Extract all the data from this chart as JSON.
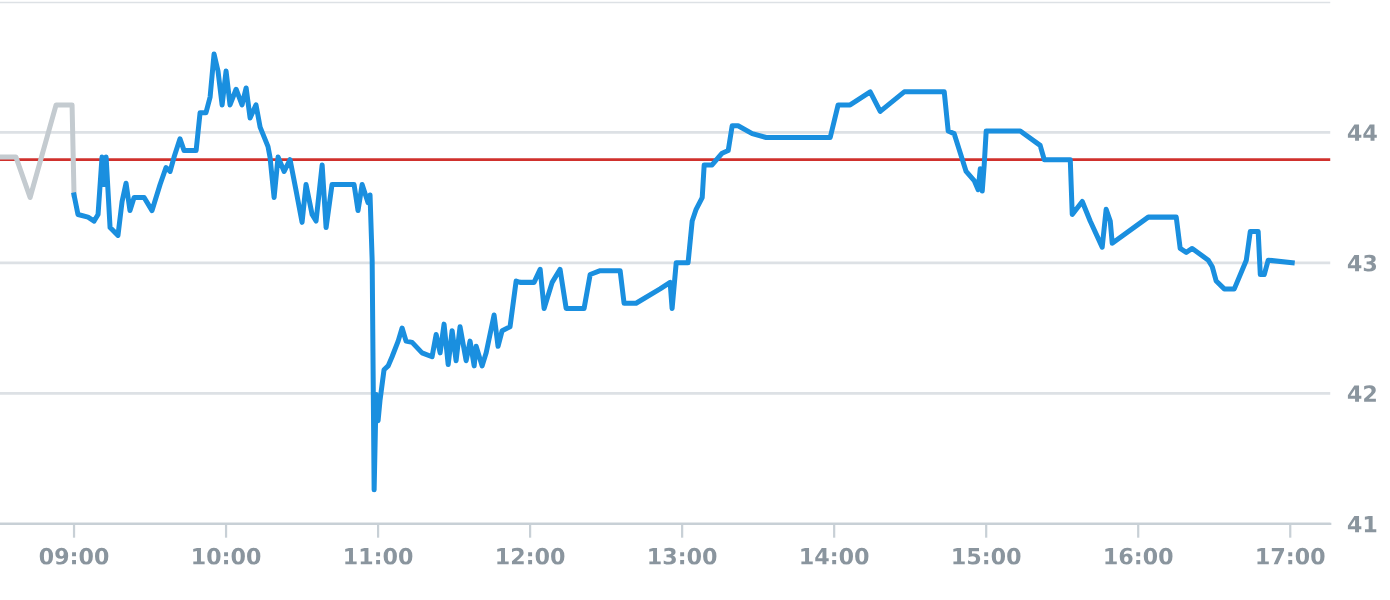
{
  "chart_data": {
    "type": "line",
    "xlim": [
      8.513,
      17.263
    ],
    "ylim": [
      41,
      45
    ],
    "xticks": [
      {
        "value": 9,
        "label": "09:00"
      },
      {
        "value": 10,
        "label": "10:00"
      },
      {
        "value": 11,
        "label": "11:00"
      },
      {
        "value": 12,
        "label": "12:00"
      },
      {
        "value": 13,
        "label": "13:00"
      },
      {
        "value": 14,
        "label": "14:00"
      },
      {
        "value": 15,
        "label": "15:00"
      },
      {
        "value": 16,
        "label": "16:00"
      },
      {
        "value": 17,
        "label": "17:00"
      }
    ],
    "yticks": [
      41,
      42,
      43,
      44,
      {
        "value": 45,
        "label": null
      }
    ],
    "grid": "y",
    "marker": "none",
    "line_style": "solid",
    "ref_lines": [
      {
        "axis": "y",
        "value": 43.79,
        "color": "#d0312d"
      }
    ],
    "series": [
      {
        "color": "#c4cbd0",
        "x": [
          8.513,
          8.618,
          8.711,
          8.882,
          8.987,
          9.0
        ],
        "values": [
          43.81,
          43.81,
          43.5,
          44.21,
          44.21,
          43.52
        ]
      },
      {
        "color": "#1a8fdf",
        "x": [
          9.0,
          9.026,
          9.092,
          9.132,
          9.158,
          9.184,
          9.197,
          9.211,
          9.237,
          9.289,
          9.316,
          9.342,
          9.368,
          9.395,
          9.461,
          9.513,
          9.566,
          9.605,
          9.632,
          9.658,
          9.697,
          9.724,
          9.803,
          9.829,
          9.868,
          9.895,
          9.921,
          9.947,
          9.974,
          10.0,
          10.026,
          10.066,
          10.105,
          10.132,
          10.158,
          10.197,
          10.224,
          10.276,
          10.289,
          10.316,
          10.342,
          10.382,
          10.421,
          10.461,
          10.5,
          10.526,
          10.566,
          10.592,
          10.632,
          10.658,
          10.697,
          10.842,
          10.868,
          10.895,
          10.934,
          10.947,
          10.961,
          10.974,
          10.987,
          11.0,
          11.013,
          11.039,
          11.066,
          11.092,
          11.132,
          11.158,
          11.184,
          11.224,
          11.289,
          11.355,
          11.382,
          11.408,
          11.434,
          11.461,
          11.487,
          11.513,
          11.539,
          11.579,
          11.605,
          11.632,
          11.645,
          11.684,
          11.711,
          11.763,
          11.789,
          11.816,
          11.868,
          11.908,
          11.934,
          12.026,
          12.066,
          12.092,
          12.145,
          12.197,
          12.237,
          12.355,
          12.395,
          12.461,
          12.592,
          12.618,
          12.697,
          12.855,
          12.921,
          12.934,
          12.961,
          13.039,
          13.066,
          13.092,
          13.132,
          13.145,
          13.197,
          13.263,
          13.303,
          13.329,
          13.368,
          13.461,
          13.553,
          13.974,
          14.026,
          14.105,
          14.237,
          14.303,
          14.461,
          14.724,
          14.75,
          14.789,
          14.868,
          14.921,
          14.947,
          14.961,
          14.974,
          14.987,
          15.0,
          15.224,
          15.355,
          15.382,
          15.553,
          15.566,
          15.632,
          15.684,
          15.763,
          15.789,
          15.816,
          15.829,
          16.066,
          16.25,
          16.276,
          16.316,
          16.355,
          16.461,
          16.487,
          16.513,
          16.566,
          16.632,
          16.711,
          16.737,
          16.789,
          16.803,
          16.829,
          16.855,
          17.013
        ],
        "values": [
          43.52,
          43.37,
          43.35,
          43.32,
          43.37,
          43.81,
          43.6,
          43.81,
          43.27,
          43.21,
          43.47,
          43.61,
          43.4,
          43.5,
          43.5,
          43.4,
          43.6,
          43.73,
          43.7,
          43.81,
          43.95,
          43.86,
          43.86,
          44.15,
          44.15,
          44.27,
          44.6,
          44.47,
          44.21,
          44.47,
          44.21,
          44.33,
          44.21,
          44.34,
          44.11,
          44.21,
          44.04,
          43.89,
          43.81,
          43.5,
          43.81,
          43.7,
          43.79,
          43.55,
          43.31,
          43.6,
          43.37,
          43.32,
          43.75,
          43.27,
          43.6,
          43.6,
          43.4,
          43.6,
          43.46,
          43.52,
          43.02,
          41.26,
          41.99,
          41.79,
          41.95,
          42.18,
          42.21,
          42.28,
          42.4,
          42.5,
          42.4,
          42.39,
          42.31,
          42.28,
          42.45,
          42.31,
          42.53,
          42.22,
          42.48,
          42.25,
          42.51,
          42.25,
          42.4,
          42.21,
          42.36,
          42.21,
          42.31,
          42.6,
          42.36,
          42.48,
          42.51,
          42.86,
          42.85,
          42.85,
          42.95,
          42.65,
          42.85,
          42.95,
          42.65,
          42.65,
          42.91,
          42.94,
          42.94,
          42.69,
          42.69,
          42.8,
          42.85,
          42.65,
          43.0,
          43.0,
          43.32,
          43.41,
          43.5,
          43.75,
          43.75,
          43.84,
          43.86,
          44.05,
          44.05,
          43.99,
          43.96,
          43.96,
          44.21,
          44.21,
          44.31,
          44.16,
          44.31,
          44.31,
          44.01,
          43.99,
          43.7,
          43.63,
          43.56,
          43.72,
          43.55,
          43.75,
          44.01,
          44.01,
          43.9,
          43.79,
          43.79,
          43.37,
          43.47,
          43.32,
          43.12,
          43.41,
          43.32,
          43.15,
          43.35,
          43.35,
          43.11,
          43.08,
          43.11,
          43.02,
          42.97,
          42.86,
          42.8,
          42.8,
          43.02,
          43.24,
          43.24,
          42.91,
          42.91,
          43.02,
          43.0
        ]
      }
    ]
  }
}
